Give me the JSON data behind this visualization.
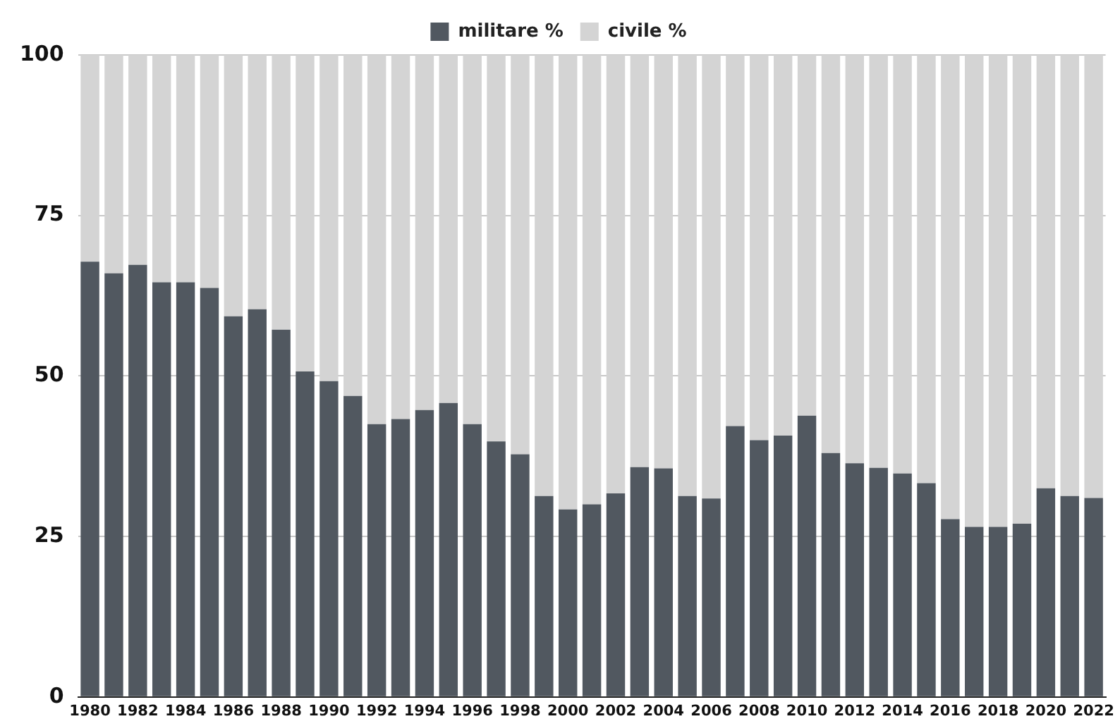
{
  "chart_data": {
    "type": "bar",
    "stacked": true,
    "categories": [
      "1980",
      null,
      "1982",
      null,
      "1984",
      null,
      "1986",
      null,
      "1988",
      null,
      "1990",
      null,
      "1992",
      null,
      "1994",
      null,
      "1996",
      null,
      "1998",
      null,
      "2000",
      null,
      "2002",
      null,
      "2004",
      null,
      "2006",
      null,
      "2008",
      null,
      "2010",
      null,
      "2012",
      null,
      "2014",
      null,
      "2016",
      null,
      "2018",
      null,
      "2020",
      null,
      "2022"
    ],
    "series": [
      {
        "name": "militare %",
        "color": "#515860",
        "values": [
          67.8,
          66.0,
          67.3,
          64.6,
          64.6,
          63.7,
          59.3,
          60.4,
          57.2,
          50.7,
          49.2,
          46.9,
          42.5,
          43.3,
          44.7,
          45.8,
          42.5,
          39.8,
          37.8,
          31.3,
          29.2,
          30.0,
          31.7,
          35.8,
          35.6,
          31.3,
          30.9,
          42.2,
          40.0,
          40.7,
          43.8,
          38.0,
          36.4,
          35.7,
          34.8,
          33.3,
          27.7,
          26.5,
          26.5,
          27.0,
          32.5,
          31.3,
          31.0
        ]
      },
      {
        "name": "civile %",
        "color": "#d4d4d4",
        "values": [
          32.2,
          34.0,
          32.7,
          35.4,
          35.4,
          36.3,
          40.7,
          39.6,
          42.8,
          49.3,
          50.8,
          53.1,
          57.5,
          56.7,
          55.3,
          54.2,
          57.5,
          60.2,
          62.2,
          68.7,
          70.8,
          70.0,
          68.3,
          64.2,
          64.4,
          68.7,
          69.1,
          57.8,
          60.0,
          59.3,
          56.2,
          62.0,
          63.6,
          64.3,
          65.2,
          66.7,
          72.3,
          73.5,
          73.5,
          73.0,
          67.5,
          68.7,
          69.0
        ]
      }
    ],
    "ylim": [
      0,
      100
    ],
    "yticks": [
      0,
      25,
      50,
      75,
      100
    ],
    "grid": "y",
    "legend": "top"
  }
}
